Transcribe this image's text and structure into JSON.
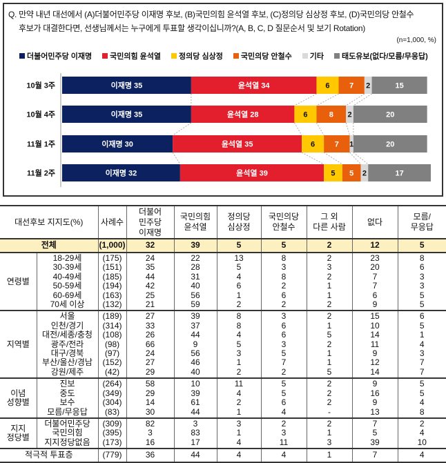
{
  "question": {
    "line1": "Q. 만약 내년 대선에서 (A)더불어민주당 이재명 후보, (B)국민의힘 윤석열 후보, (C)정의당 심상정 후보, (D)국민의당 안철수",
    "line2": "후보가 대결한다면, 선생님께서는 누구에게 투표할 생각이십니까?(A, B, C, D 질문순서 및 보기 Rotation)",
    "sample_note": "(n=1,000, %)"
  },
  "chart_data": {
    "type": "bar",
    "orientation": "horizontal",
    "stacked": true,
    "xlim": [
      0,
      100
    ],
    "categories": [
      "10월 3주",
      "10월 4주",
      "11월 1주",
      "11월 2주"
    ],
    "series": [
      {
        "name": "더불어민주당 이재명",
        "short": "이재명",
        "color": "#0c2160",
        "values": [
          35,
          35,
          30,
          32
        ]
      },
      {
        "name": "국민의힘 윤석열",
        "short": "윤석열",
        "color": "#e31f2d",
        "values": [
          34,
          28,
          35,
          39
        ]
      },
      {
        "name": "정의당 심상정",
        "short": "",
        "color": "#ffc800",
        "values": [
          6,
          6,
          6,
          5
        ]
      },
      {
        "name": "국민의당 안철수",
        "short": "",
        "color": "#e8600c",
        "values": [
          7,
          8,
          7,
          5
        ]
      },
      {
        "name": "기타",
        "short": "",
        "color": "#d9d9d9",
        "values": [
          2,
          2,
          1,
          2
        ]
      },
      {
        "name": "태도유보(없다/모름/무응답)",
        "short": "",
        "color": "#808080",
        "values": [
          15,
          20,
          20,
          17
        ]
      }
    ]
  },
  "table": {
    "headers": [
      "대선후보 지지도(%)",
      "사례수",
      "더불어\n민주당\n이재명",
      "국민의힘\n윤석열",
      "정의당\n심상정",
      "국민의당\n안철수",
      "그 외\n다른 사람",
      "없다",
      "모름/\n무응답"
    ],
    "total": {
      "label": "전체",
      "n": "(1,000)",
      "values": [
        "32",
        "39",
        "5",
        "5",
        "2",
        "12",
        "5"
      ]
    },
    "groups": [
      {
        "label": "연령별",
        "rows": [
          {
            "label": "18-29세",
            "n": "(175)",
            "values": [
              "24",
              "22",
              "13",
              "8",
              "2",
              "23",
              "8"
            ]
          },
          {
            "label": "30-39세",
            "n": "(151)",
            "values": [
              "35",
              "28",
              "5",
              "3",
              "3",
              "20",
              "6"
            ]
          },
          {
            "label": "40-49세",
            "n": "(185)",
            "values": [
              "44",
              "31",
              "4",
              "8",
              "2",
              "7",
              "3"
            ]
          },
          {
            "label": "50-59세",
            "n": "(194)",
            "values": [
              "42",
              "40",
              "6",
              "2",
              "1",
              "7",
              "3"
            ]
          },
          {
            "label": "60-69세",
            "n": "(163)",
            "values": [
              "25",
              "56",
              "1",
              "6",
              "1",
              "6",
              "5"
            ]
          },
          {
            "label": "70세 이상",
            "n": "(132)",
            "values": [
              "21",
              "59",
              "2",
              "2",
              "2",
              "9",
              "5"
            ]
          }
        ]
      },
      {
        "label": "지역별",
        "rows": [
          {
            "label": "서울",
            "n": "(189)",
            "values": [
              "27",
              "39",
              "8",
              "3",
              "2",
              "15",
              "6"
            ]
          },
          {
            "label": "인천/경기",
            "n": "(314)",
            "values": [
              "33",
              "37",
              "8",
              "6",
              "1",
              "10",
              "5"
            ]
          },
          {
            "label": "대전/세종/충청",
            "n": "(108)",
            "values": [
              "26",
              "44",
              "4",
              "6",
              "5",
              "14",
              "1"
            ]
          },
          {
            "label": "광주/전라",
            "n": "(98)",
            "values": [
              "66",
              "9",
              "5",
              "3",
              "2",
              "11",
              "4"
            ]
          },
          {
            "label": "대구/경북",
            "n": "(97)",
            "values": [
              "24",
              "56",
              "3",
              "5",
              "1",
              "9",
              "3"
            ]
          },
          {
            "label": "부산/울산/경남",
            "n": "(152)",
            "values": [
              "27",
              "46",
              "1",
              "7",
              "1",
              "12",
              "7"
            ]
          },
          {
            "label": "강원/제주",
            "n": "(42)",
            "values": [
              "29",
              "40",
              "2",
              "2",
              "5",
              "14",
              "7"
            ]
          }
        ]
      },
      {
        "label": "이념\n성향별",
        "rows": [
          {
            "label": "진보",
            "n": "(264)",
            "values": [
              "58",
              "10",
              "11",
              "5",
              "2",
              "9",
              "5"
            ]
          },
          {
            "label": "중도",
            "n": "(349)",
            "values": [
              "29",
              "39",
              "4",
              "5",
              "2",
              "16",
              "5"
            ]
          },
          {
            "label": "보수",
            "n": "(304)",
            "values": [
              "14",
              "61",
              "2",
              "6",
              "2",
              "9",
              "4"
            ]
          },
          {
            "label": "모름/무응답",
            "n": "(83)",
            "values": [
              "30",
              "44",
              "1",
              "4",
              "-",
              "13",
              "8"
            ]
          }
        ]
      },
      {
        "label": "지지\n정당별",
        "rows": [
          {
            "label": "더불어민주당",
            "n": "(309)",
            "values": [
              "82",
              "3",
              "3",
              "2",
              "2",
              "7",
              "2"
            ]
          },
          {
            "label": "국민의힘",
            "n": "(395)",
            "values": [
              "3",
              "83",
              "1",
              "3",
              "1",
              "5",
              "4"
            ]
          },
          {
            "label": "지지정당없음",
            "n": "(173)",
            "values": [
              "16",
              "17",
              "4",
              "11",
              "3",
              "39",
              "10"
            ]
          }
        ]
      }
    ],
    "active": {
      "label": "적극적 투표층",
      "n": "(779)",
      "values": [
        "36",
        "44",
        "4",
        "4",
        "1",
        "7",
        "4"
      ]
    }
  }
}
